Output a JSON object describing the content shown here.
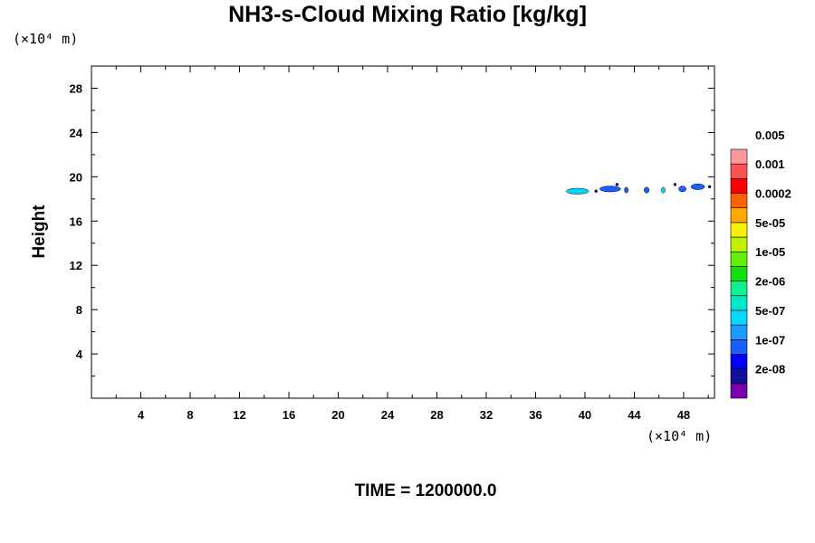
{
  "chart_data": {
    "type": "contour",
    "title": "NH3-s-Cloud Mixing Ratio [kg/kg]",
    "ylabel": "Height",
    "xlabel": "",
    "x_unit_label": "(×10⁴ m)",
    "y_unit_label": "(×10⁴ m)",
    "xlim": [
      0,
      50.5
    ],
    "ylim": [
      0,
      30
    ],
    "x_ticks": [
      4,
      8,
      12,
      16,
      20,
      24,
      28,
      32,
      36,
      40,
      44,
      48
    ],
    "y_ticks": [
      4,
      8,
      12,
      16,
      20,
      24,
      28
    ],
    "grid": false,
    "colorbar": {
      "placement": "right",
      "levels": [
        "2e-08",
        "1e-07",
        "5e-07",
        "2e-06",
        "1e-05",
        "5e-05",
        "0.0002",
        "0.001",
        "0.005"
      ],
      "colors": [
        "#7a00b5",
        "#10109a",
        "#0000ff",
        "#1860ff",
        "#1a9aff",
        "#00d8ff",
        "#00e8c8",
        "#10f090",
        "#10e010",
        "#60f000",
        "#c0f000",
        "#f8f000",
        "#ffa800",
        "#ff6000",
        "#ff0000",
        "#ff5050",
        "#ff9898"
      ]
    },
    "features": [
      {
        "x_range": [
          38.5,
          40.3
        ],
        "y": 18.7,
        "level": "5e-07"
      },
      {
        "x_range": [
          41.2,
          42.9
        ],
        "y": 18.9,
        "level": "1e-07"
      },
      {
        "x_range": [
          43.2,
          43.5
        ],
        "y": 18.8,
        "level": "1e-07"
      },
      {
        "x_range": [
          44.8,
          45.2
        ],
        "y": 18.8,
        "level": "1e-07"
      },
      {
        "x_range": [
          46.2,
          46.5
        ],
        "y": 18.8,
        "level": "5e-07"
      },
      {
        "x_range": [
          47.6,
          48.2
        ],
        "y": 18.9,
        "level": "1e-07"
      },
      {
        "x_range": [
          48.6,
          49.7
        ],
        "y": 19.1,
        "level": "1e-07"
      },
      {
        "x_range": [
          40.8,
          41.0
        ],
        "y": 18.7,
        "level": "2e-08"
      },
      {
        "x_range": [
          42.5,
          42.7
        ],
        "y": 19.3,
        "level": "2e-08"
      },
      {
        "x_range": [
          47.2,
          47.4
        ],
        "y": 19.3,
        "level": "2e-08"
      },
      {
        "x_range": [
          50.0,
          50.2
        ],
        "y": 19.1,
        "level": "2e-08"
      }
    ]
  },
  "footer": "TIME = 1200000.0"
}
